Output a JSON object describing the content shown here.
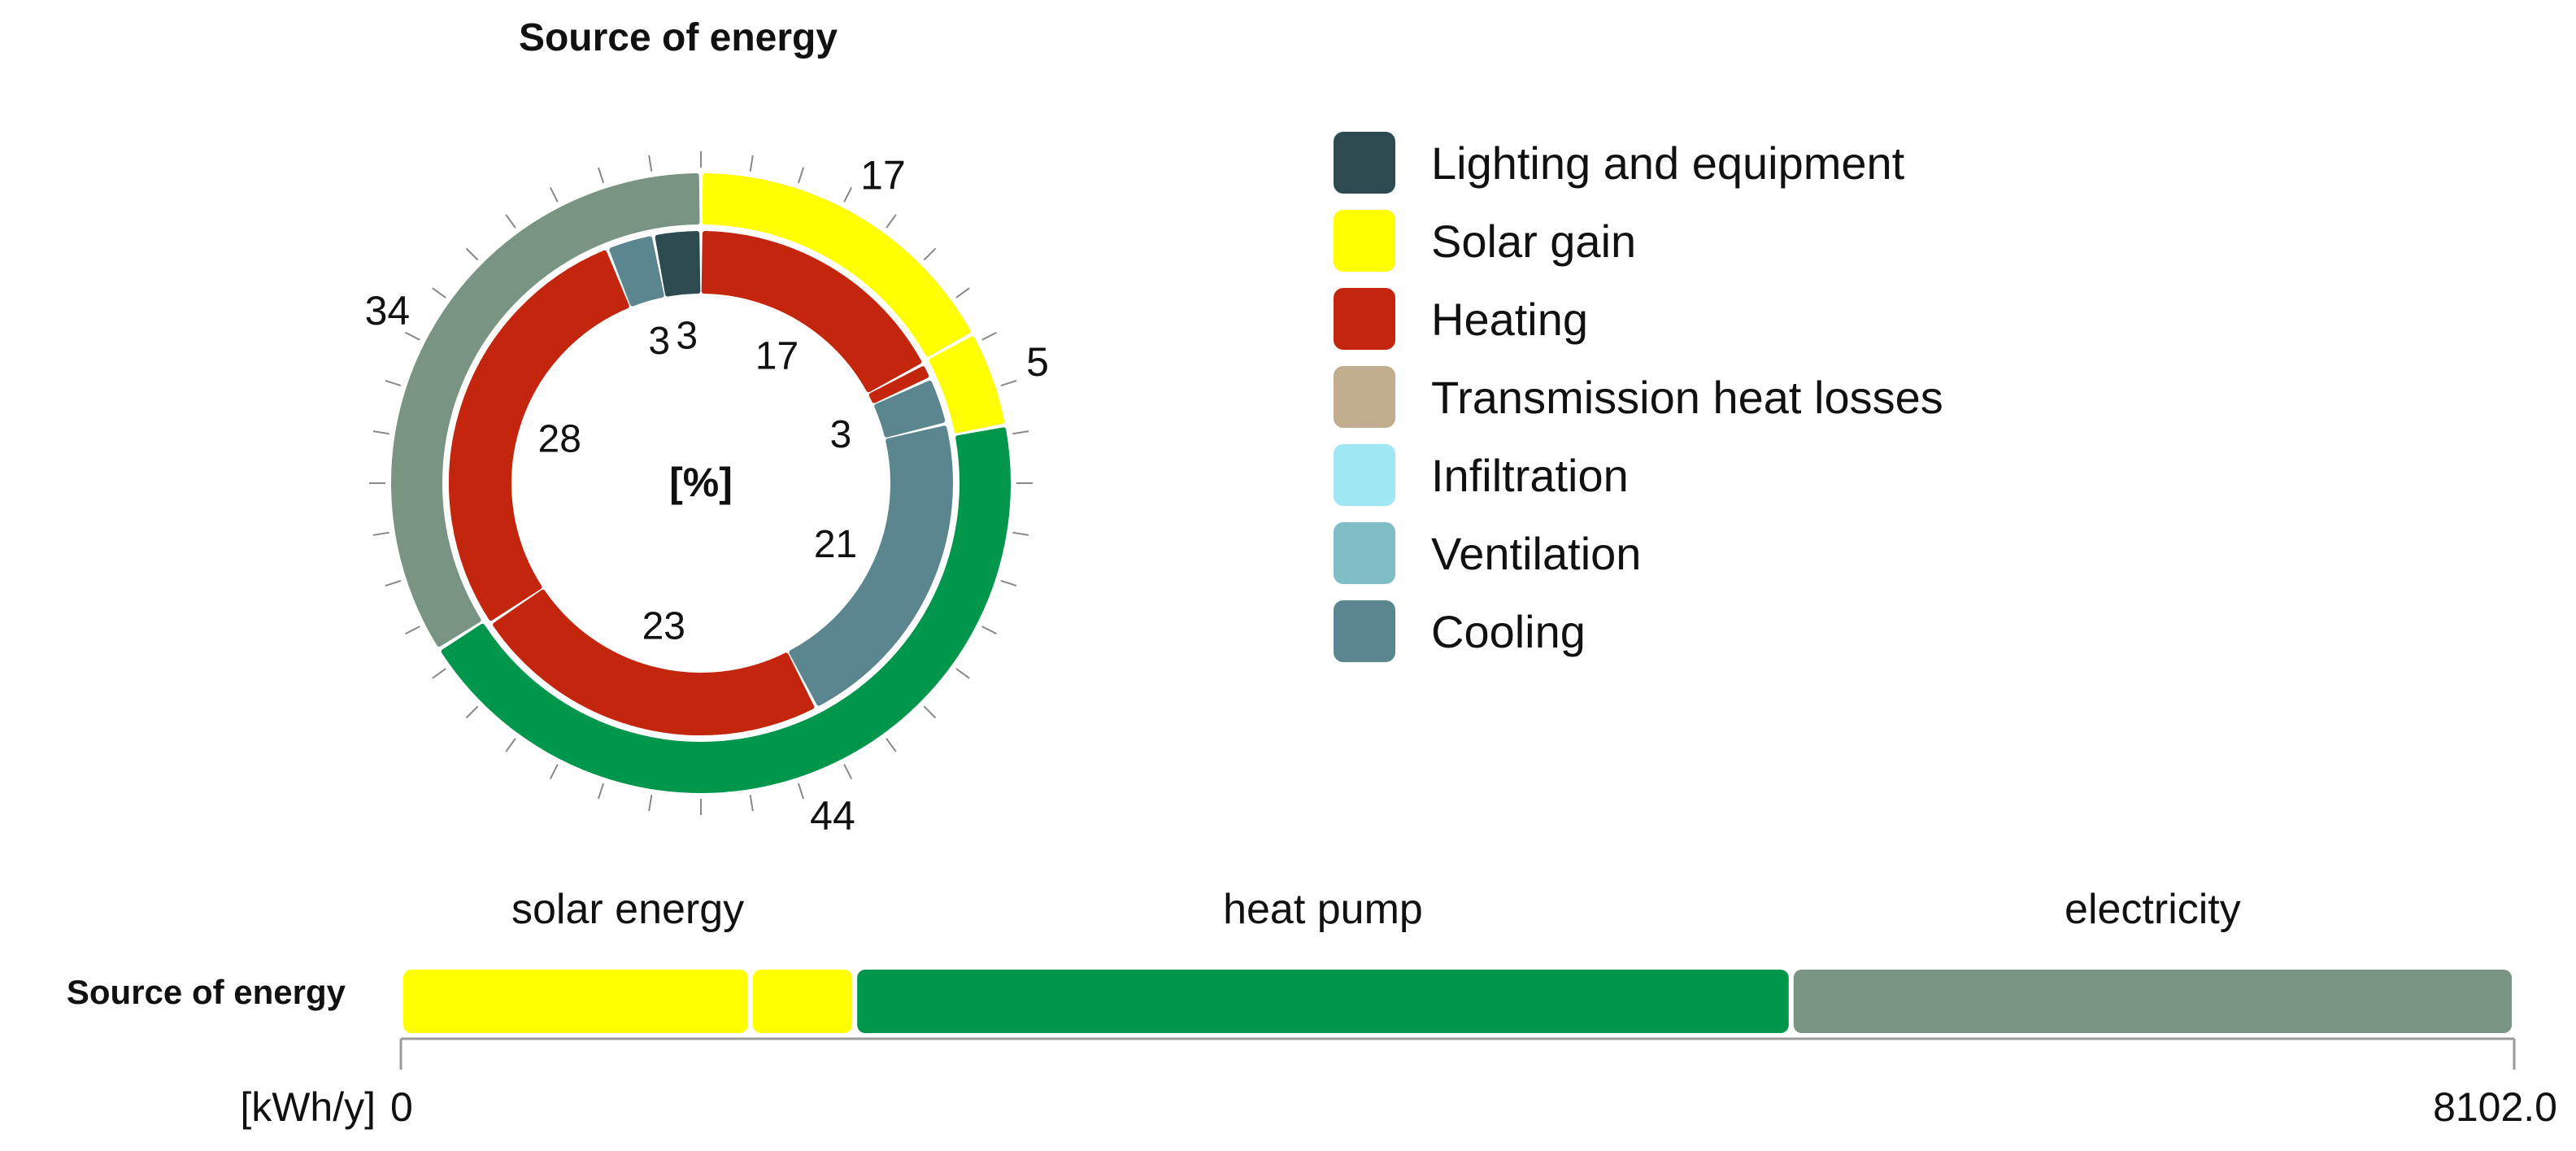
{
  "chart_data": [
    {
      "type": "donut",
      "title": "Source of energy",
      "center_label": "[%]",
      "outer_ring": {
        "slices": [
          {
            "label": "17",
            "value": 17,
            "color": "#ffff00"
          },
          {
            "label": "5",
            "value": 5,
            "color": "#ffff00"
          },
          {
            "label": "44",
            "value": 44,
            "color": "#00964b"
          },
          {
            "label": "34",
            "value": 34,
            "color": "#7a9483"
          }
        ]
      },
      "inner_ring": {
        "slices": [
          {
            "label": "17",
            "value": 17,
            "color": "#c3260d"
          },
          {
            "label": "",
            "value": 1,
            "color": "#c3260d"
          },
          {
            "label": "3",
            "value": 3,
            "color": "#5b8690"
          },
          {
            "label": "21",
            "value": 21,
            "color": "#5b8690"
          },
          {
            "label": "23",
            "value": 23,
            "color": "#c3260d"
          },
          {
            "label": "28",
            "value": 28,
            "color": "#c3260d"
          },
          {
            "label": "3",
            "value": 3,
            "color": "#5b8690"
          },
          {
            "label": "3",
            "value": 3,
            "color": "#2d4b4e"
          }
        ]
      },
      "legend": [
        {
          "label": "Lighting and equipment",
          "color": "#2d4b4e"
        },
        {
          "label": "Solar gain",
          "color": "#ffff00"
        },
        {
          "label": "Heating",
          "color": "#c3260d"
        },
        {
          "label": "Transmission heat losses",
          "color": "#c2ac8e"
        },
        {
          "label": "Infiltration",
          "color": "#9ee7f3"
        },
        {
          "label": "Ventilation",
          "color": "#7fbdc7"
        },
        {
          "label": "Cooling",
          "color": "#5b8690"
        }
      ]
    },
    {
      "type": "bar",
      "orientation": "horizontal",
      "stacked": true,
      "row_label": "Source of energy",
      "unit_label": "[kWh/y]",
      "xlim": [
        0,
        8102.0
      ],
      "axis_tick_labels": [
        "0",
        "8102.0"
      ],
      "group_labels": [
        {
          "label": "solar energy",
          "from": 0,
          "to": 1740
        },
        {
          "label": "heat pump",
          "from": 1740,
          "to": 5330
        },
        {
          "label": "electricity",
          "from": 5330,
          "to": 8102.0
        }
      ],
      "segments": [
        {
          "value": 1340,
          "color": "#ffff00"
        },
        {
          "value": 400,
          "color": "#ffff00"
        },
        {
          "value": 3590,
          "color": "#00964b"
        },
        {
          "value": 2772,
          "color": "#7a9483"
        }
      ]
    }
  ]
}
